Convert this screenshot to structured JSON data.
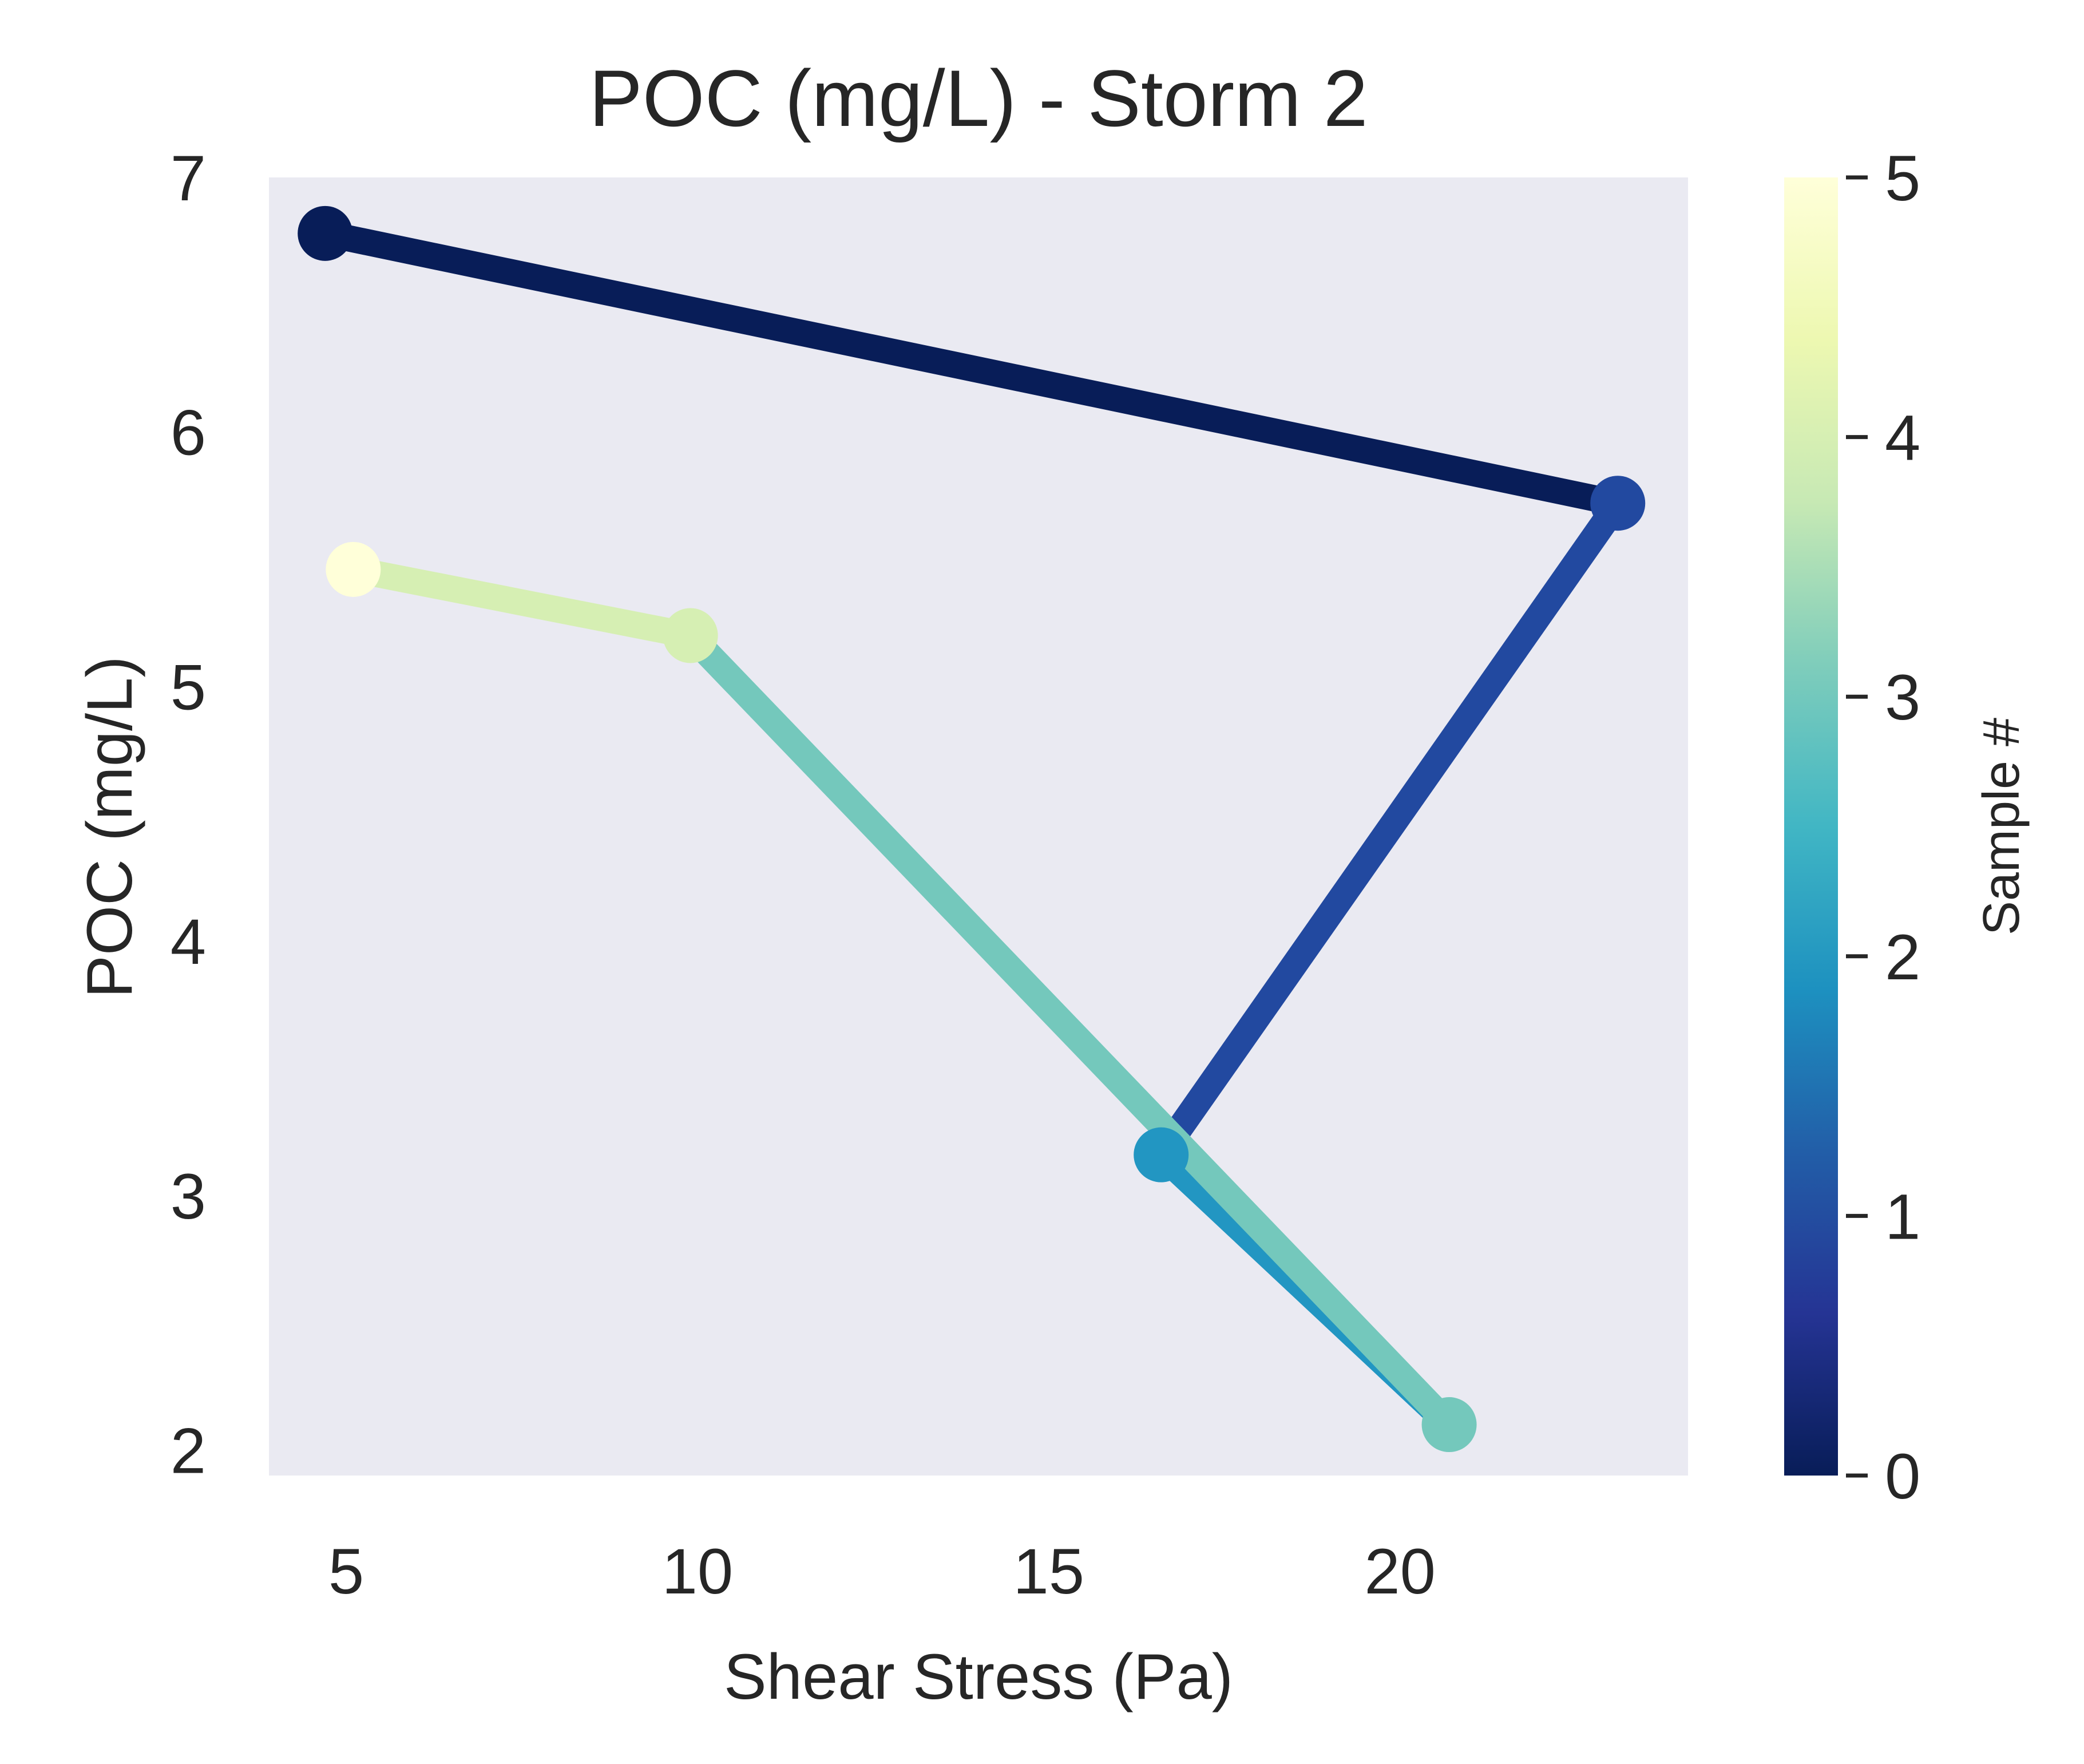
{
  "chart_data": {
    "type": "line",
    "title": "POC (mg/L) - Storm 2",
    "xlabel": "Shear Stress (Pa)",
    "ylabel": "POC (mg/L)",
    "xlim": [
      3.9,
      24.1
    ],
    "ylim": [
      1.9,
      7.0
    ],
    "xticks": [
      5,
      10,
      15,
      20
    ],
    "yticks": [
      2,
      3,
      4,
      5,
      6,
      7
    ],
    "grid": false,
    "background": "#eaeaf2",
    "colormap": "YlGnBu_r",
    "colorbar": {
      "label": "Sample #",
      "range": [
        0,
        5
      ],
      "ticks": [
        0,
        1,
        2,
        3,
        4,
        5
      ],
      "stops": [
        "#081d58",
        "#253494",
        "#225ea8",
        "#1d91c0",
        "#41b6c4",
        "#7fcdbb",
        "#c7e9b4",
        "#edf8b1",
        "#ffffd9"
      ]
    },
    "points": [
      {
        "sample": 0,
        "x": 4.7,
        "y": 6.78,
        "color": "#081d58"
      },
      {
        "sample": 1,
        "x": 23.1,
        "y": 5.72,
        "color": "#2249a0"
      },
      {
        "sample": 2,
        "x": 16.6,
        "y": 3.16,
        "color": "#2296c2"
      },
      {
        "sample": 3,
        "x": 20.7,
        "y": 2.1,
        "color": "#74c8bc"
      },
      {
        "sample": 4,
        "x": 9.9,
        "y": 5.2,
        "color": "#d6efb3"
      },
      {
        "sample": 5,
        "x": 5.1,
        "y": 5.46,
        "color": "#ffffd9"
      }
    ],
    "segments": [
      {
        "from": 0,
        "to": 1,
        "color": "#081d58"
      },
      {
        "from": 1,
        "to": 2,
        "color": "#2249a0"
      },
      {
        "from": 2,
        "to": 3,
        "color": "#2296c2"
      },
      {
        "from": 3,
        "to": 4,
        "color": "#74c8bc"
      },
      {
        "from": 4,
        "to": 5,
        "color": "#d6efb3"
      }
    ]
  }
}
